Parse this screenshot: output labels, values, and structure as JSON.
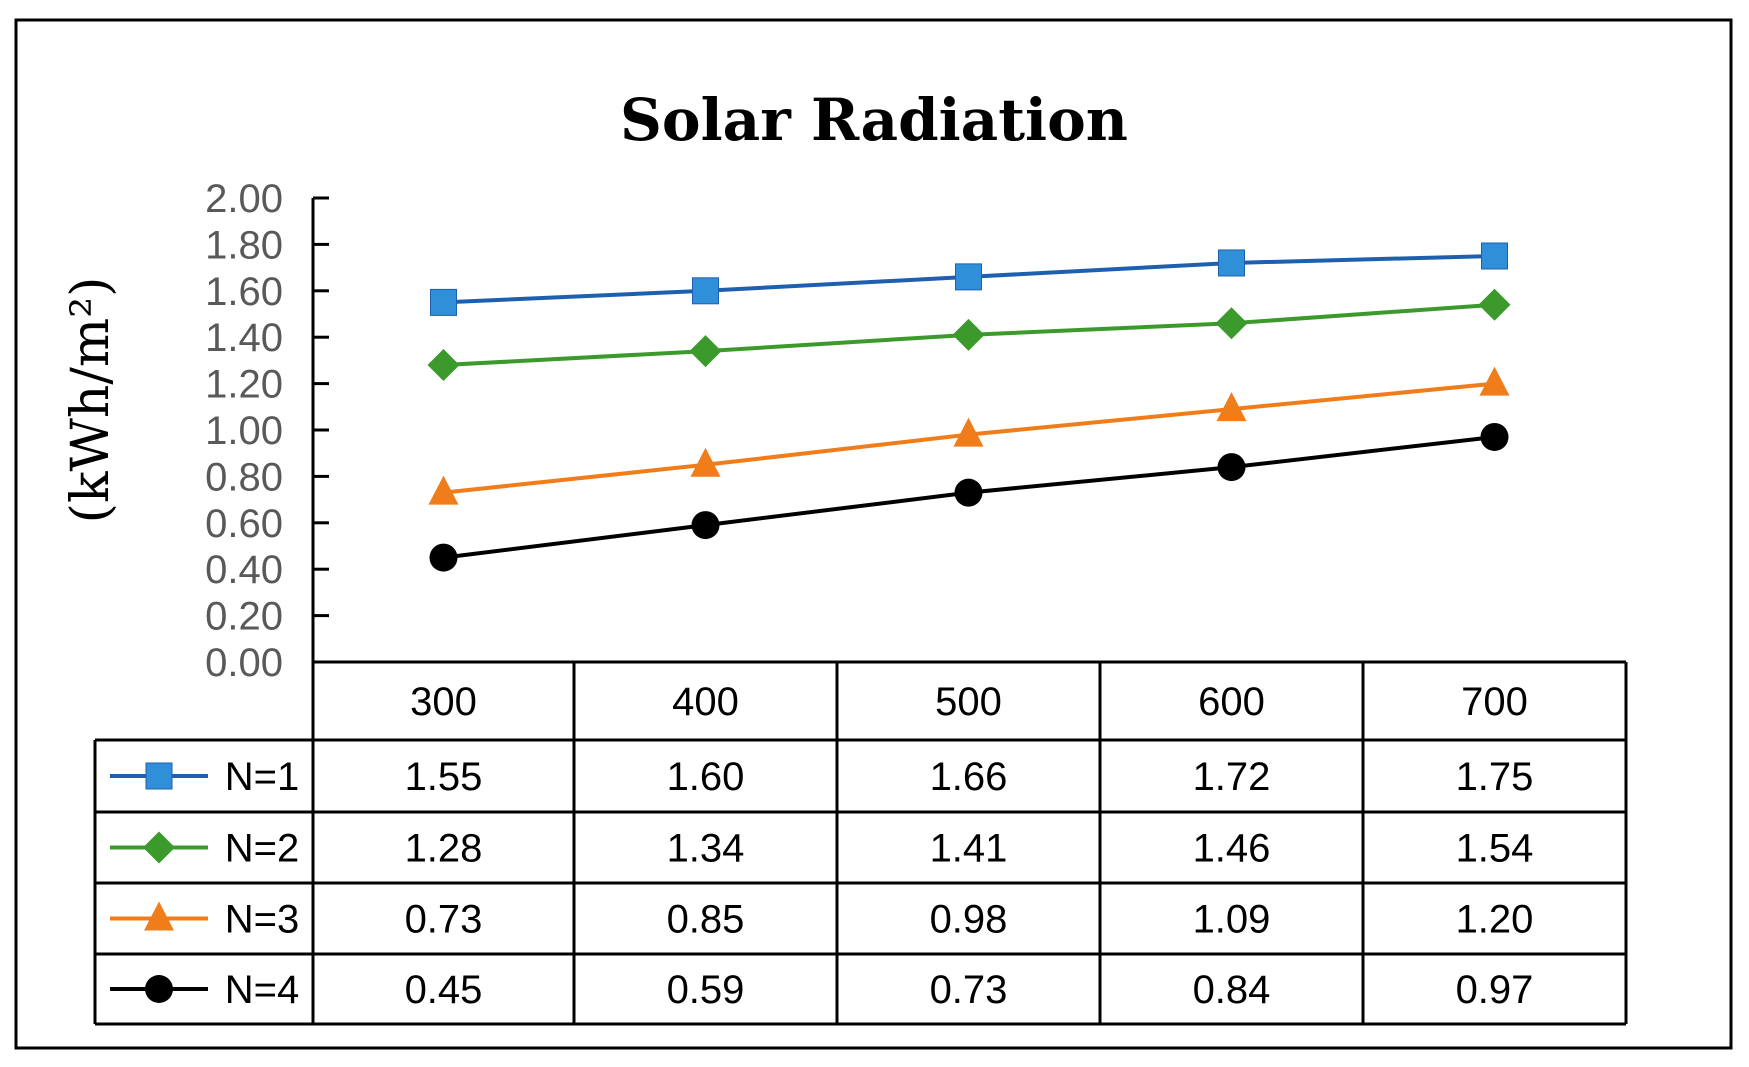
{
  "chart_data": {
    "type": "line",
    "title": "Solar Radiation",
    "ylabel": "(kWh/m²)",
    "xlabel": "",
    "ylim": [
      0,
      2
    ],
    "yticks": [
      "0.00",
      "0.20",
      "0.40",
      "0.60",
      "0.80",
      "1.00",
      "1.20",
      "1.40",
      "1.60",
      "1.80",
      "2.00"
    ],
    "categories": [
      "300",
      "400",
      "500",
      "600",
      "700"
    ],
    "grid": false,
    "legend": "data-table",
    "series": [
      {
        "name": "N=1",
        "color": "#1f5fb0",
        "marker_color": "#2f8fd8",
        "marker": "square",
        "values": [
          1.55,
          1.6,
          1.66,
          1.72,
          1.75
        ],
        "labels": [
          "1.55",
          "1.60",
          "1.66",
          "1.72",
          "1.75"
        ]
      },
      {
        "name": "N=2",
        "color": "#3c9a2c",
        "marker_color": "#3c9a2c",
        "marker": "diamond",
        "values": [
          1.28,
          1.34,
          1.41,
          1.46,
          1.54
        ],
        "labels": [
          "1.28",
          "1.34",
          "1.41",
          "1.46",
          "1.54"
        ]
      },
      {
        "name": "N=3",
        "color": "#f07d1a",
        "marker_color": "#f07d1a",
        "marker": "triangle",
        "values": [
          0.73,
          0.85,
          0.98,
          1.09,
          1.2
        ],
        "labels": [
          "0.73",
          "0.85",
          "0.98",
          "1.09",
          "1.20"
        ]
      },
      {
        "name": "N=4",
        "color": "#000000",
        "marker_color": "#000000",
        "marker": "circle",
        "values": [
          0.45,
          0.59,
          0.73,
          0.84,
          0.97
        ],
        "labels": [
          "0.45",
          "0.59",
          "0.73",
          "0.84",
          "0.97"
        ]
      }
    ]
  }
}
